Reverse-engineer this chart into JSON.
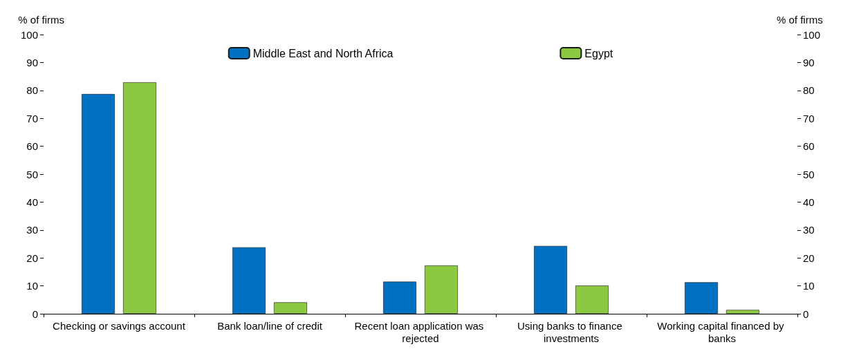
{
  "chart_data": {
    "type": "bar",
    "ylabel": "% of firms",
    "y2label": "% of firms",
    "categories": [
      "Checking or savings account",
      "Bank loan/line of credit",
      "Recent loan application was rejected",
      "Using banks to finance investments",
      "Working capital financed by banks"
    ],
    "series": [
      {
        "name": "Middle East and North Africa",
        "color": "#0070c0",
        "values": [
          78.7,
          23.8,
          11.5,
          24.3,
          11.3
        ]
      },
      {
        "name": "Egypt",
        "color": "#8cc841",
        "values": [
          82.9,
          4.1,
          17.3,
          10.1,
          1.4
        ]
      }
    ],
    "ylim": [
      0,
      100
    ],
    "yticks": [
      0,
      10,
      20,
      30,
      40,
      50,
      60,
      70,
      80,
      90,
      100
    ],
    "y2lim": [
      0,
      100
    ],
    "y2ticks": [
      0,
      10,
      20,
      30,
      40,
      50,
      60,
      70,
      80,
      90,
      100
    ],
    "grid": false,
    "legend": "top"
  }
}
